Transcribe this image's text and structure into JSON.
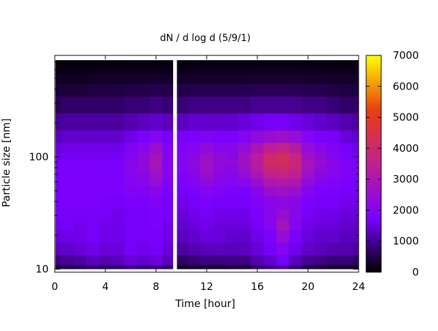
{
  "chart_data": {
    "type": "heatmap",
    "title": "dN / d log d (5/9/1)",
    "xlabel": "Time [hour]",
    "ylabel": "Particle size [nm]",
    "xlim": [
      0,
      24
    ],
    "ylim": [
      9.4,
      800
    ],
    "yscale": "log",
    "xticks": [
      0,
      4,
      8,
      12,
      16,
      20,
      24
    ],
    "yticks": [
      10,
      100
    ],
    "colorbar": {
      "range": [
        0,
        7000
      ],
      "ticks": [
        0,
        1000,
        2000,
        3000,
        4000,
        5000,
        6000,
        7000
      ],
      "palette": [
        "#000000",
        "#7a00ff",
        "#c02090",
        "#e84010",
        "#ffff00"
      ]
    },
    "data_gap_hours": [
      9.35,
      9.65
    ],
    "rows_size_nm": [
      10,
      12,
      15,
      20,
      25,
      30,
      40,
      50,
      60,
      70,
      80,
      90,
      100,
      120,
      150,
      200,
      300,
      400,
      500,
      600,
      700,
      800
    ],
    "cols_time_h": [
      0,
      1,
      2,
      3,
      4,
      5,
      6,
      7,
      8,
      9,
      10,
      11,
      12,
      13,
      14,
      15,
      16,
      17,
      18,
      19,
      20,
      21,
      22,
      23,
      24
    ],
    "values": [
      [
        400,
        500,
        600,
        700,
        600,
        700,
        900,
        800,
        900,
        700,
        200,
        300,
        300,
        300,
        400,
        400,
        700,
        900,
        1100,
        800,
        500,
        400,
        300,
        300,
        300
      ],
      [
        900,
        1000,
        1100,
        1300,
        1200,
        1300,
        1500,
        1400,
        1500,
        1300,
        700,
        800,
        900,
        900,
        900,
        900,
        1200,
        1400,
        1700,
        1300,
        1000,
        900,
        800,
        800,
        700
      ],
      [
        1300,
        1400,
        1500,
        1600,
        1500,
        1500,
        1700,
        1600,
        1700,
        1500,
        1100,
        1200,
        1300,
        1300,
        1300,
        1300,
        1500,
        1700,
        2000,
        1600,
        1400,
        1300,
        1200,
        1200,
        1100
      ],
      [
        1500,
        1600,
        1600,
        1700,
        1600,
        1600,
        1700,
        1700,
        1700,
        1600,
        1300,
        1400,
        1500,
        1500,
        1400,
        1400,
        1600,
        1800,
        2400,
        1800,
        1500,
        1400,
        1400,
        1300,
        1300
      ],
      [
        1600,
        1700,
        1600,
        1700,
        1600,
        1600,
        1700,
        1700,
        1800,
        1600,
        1400,
        1500,
        1600,
        1500,
        1500,
        1500,
        1700,
        2000,
        2800,
        2000,
        1600,
        1500,
        1500,
        1400,
        1400
      ],
      [
        1700,
        1700,
        1700,
        1700,
        1700,
        1600,
        1700,
        1700,
        1800,
        1700,
        1500,
        1600,
        1700,
        1600,
        1600,
        1600,
        1800,
        2100,
        2500,
        2100,
        1700,
        1600,
        1600,
        1500,
        1500
      ],
      [
        1700,
        1800,
        1800,
        1800,
        1700,
        1700,
        1800,
        1800,
        1900,
        1700,
        1600,
        1700,
        1800,
        1700,
        1700,
        1700,
        1900,
        2100,
        2200,
        2100,
        1800,
        1700,
        1700,
        1600,
        1600
      ],
      [
        1700,
        1800,
        1800,
        1800,
        1800,
        1800,
        1900,
        1900,
        2100,
        1800,
        1700,
        1800,
        2000,
        1900,
        1800,
        1800,
        2100,
        2500,
        2600,
        2500,
        2000,
        1800,
        1800,
        1700,
        1700
      ],
      [
        1700,
        1800,
        1800,
        1800,
        1800,
        1800,
        2000,
        2100,
        2400,
        1900,
        1800,
        2000,
        2300,
        2100,
        2000,
        2100,
        2500,
        3000,
        3100,
        3000,
        2300,
        2000,
        1900,
        1800,
        1700
      ],
      [
        1700,
        1800,
        1800,
        1800,
        1800,
        1800,
        2000,
        2200,
        2600,
        2000,
        1900,
        2100,
        2500,
        2200,
        2100,
        2400,
        2900,
        3500,
        3600,
        3400,
        2600,
        2200,
        2000,
        1900,
        1800
      ],
      [
        1700,
        1800,
        1800,
        1800,
        1800,
        1800,
        2100,
        2300,
        2800,
        2000,
        2000,
        2200,
        2600,
        2300,
        2200,
        2600,
        3200,
        3900,
        4000,
        3700,
        2800,
        2300,
        2100,
        1900,
        1800
      ],
      [
        1700,
        1800,
        1800,
        1800,
        1800,
        1800,
        2100,
        2300,
        2900,
        2000,
        2000,
        2200,
        2700,
        2300,
        2300,
        2700,
        3300,
        4100,
        4200,
        3800,
        2800,
        2400,
        2100,
        1900,
        1800
      ],
      [
        1600,
        1700,
        1700,
        1700,
        1700,
        1700,
        2000,
        2300,
        2800,
        2000,
        2000,
        2200,
        2600,
        2300,
        2200,
        2700,
        3300,
        4000,
        4200,
        3700,
        2700,
        2300,
        2000,
        1800,
        1700
      ],
      [
        1500,
        1600,
        1600,
        1600,
        1600,
        1600,
        1900,
        2100,
        2500,
        1900,
        1900,
        2000,
        2300,
        2100,
        2100,
        2400,
        2900,
        3400,
        3600,
        3200,
        2400,
        2100,
        1900,
        1700,
        1600
      ],
      [
        1300,
        1400,
        1400,
        1400,
        1400,
        1400,
        1600,
        1800,
        2000,
        1700,
        1700,
        1800,
        1900,
        1800,
        1800,
        2000,
        2300,
        2500,
        2600,
        2400,
        2000,
        1800,
        1700,
        1500,
        1400
      ],
      [
        1000,
        1100,
        1100,
        1100,
        1100,
        1100,
        1200,
        1300,
        1400,
        1300,
        1300,
        1400,
        1400,
        1400,
        1400,
        1500,
        1600,
        1700,
        1700,
        1600,
        1500,
        1400,
        1300,
        1200,
        1100
      ],
      [
        600,
        700,
        700,
        700,
        700,
        700,
        800,
        800,
        900,
        800,
        800,
        900,
        900,
        900,
        900,
        900,
        1000,
        1000,
        1000,
        1000,
        900,
        900,
        800,
        700,
        700
      ],
      [
        400,
        400,
        400,
        450,
        450,
        450,
        500,
        500,
        550,
        500,
        500,
        550,
        550,
        550,
        550,
        550,
        600,
        600,
        600,
        600,
        550,
        550,
        500,
        450,
        450
      ],
      [
        250,
        250,
        250,
        280,
        280,
        280,
        300,
        300,
        330,
        300,
        300,
        330,
        330,
        330,
        330,
        330,
        350,
        350,
        350,
        350,
        330,
        330,
        300,
        280,
        280
      ],
      [
        150,
        150,
        150,
        160,
        160,
        160,
        170,
        170,
        180,
        170,
        170,
        180,
        180,
        180,
        180,
        180,
        190,
        190,
        190,
        190,
        180,
        180,
        170,
        160,
        160
      ],
      [
        80,
        80,
        80,
        90,
        90,
        90,
        100,
        100,
        100,
        100,
        100,
        100,
        100,
        100,
        100,
        100,
        110,
        110,
        110,
        110,
        100,
        100,
        100,
        90,
        90
      ],
      [
        40,
        40,
        40,
        40,
        40,
        40,
        50,
        50,
        50,
        50,
        50,
        50,
        50,
        50,
        50,
        50,
        50,
        50,
        50,
        50,
        50,
        50,
        50,
        40,
        40
      ]
    ]
  }
}
